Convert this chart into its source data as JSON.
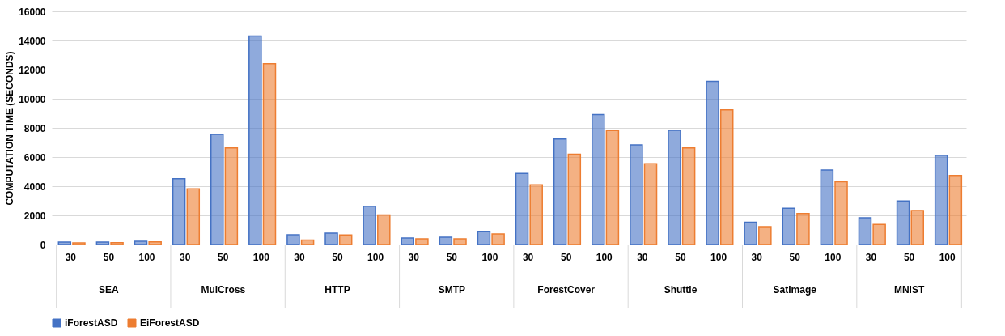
{
  "chart_data": {
    "type": "bar",
    "ylabel": "COMPUTATION TIME (SECONDS)",
    "categories": [
      "30",
      "50",
      "100",
      "30",
      "50",
      "100",
      "30",
      "50",
      "100",
      "30",
      "50",
      "100",
      "30",
      "50",
      "100",
      "30",
      "50",
      "100",
      "30",
      "50",
      "100",
      "30",
      "50",
      "100"
    ],
    "annotations": [
      "SEA",
      "MulCross",
      "HTTP",
      "SMTP",
      "ForestCover",
      "Shuttle",
      "SatImage",
      "MNIST"
    ],
    "series": [
      {
        "name": "iForestASD",
        "color": "#4472c4",
        "values": [
          170,
          170,
          220,
          4520,
          7560,
          14300,
          660,
          780,
          2620,
          440,
          500,
          900,
          4870,
          7230,
          8910,
          6830,
          7840,
          11200,
          1530,
          2490,
          5110,
          1830,
          2990,
          6130
        ]
      },
      {
        "name": "EiForestASD",
        "color": "#ed7d31",
        "values": [
          110,
          130,
          180,
          3820,
          6620,
          12400,
          300,
          650,
          2030,
          390,
          390,
          720,
          4100,
          6200,
          7820,
          5540,
          6620,
          9240,
          1220,
          2120,
          4300,
          1370,
          2340,
          4740
        ]
      }
    ],
    "ylim": [
      0,
      16000
    ],
    "yticks": [
      0,
      2000,
      4000,
      6000,
      8000,
      10000,
      12000,
      14000,
      16000
    ],
    "grid": "y",
    "legend": "bottom"
  }
}
